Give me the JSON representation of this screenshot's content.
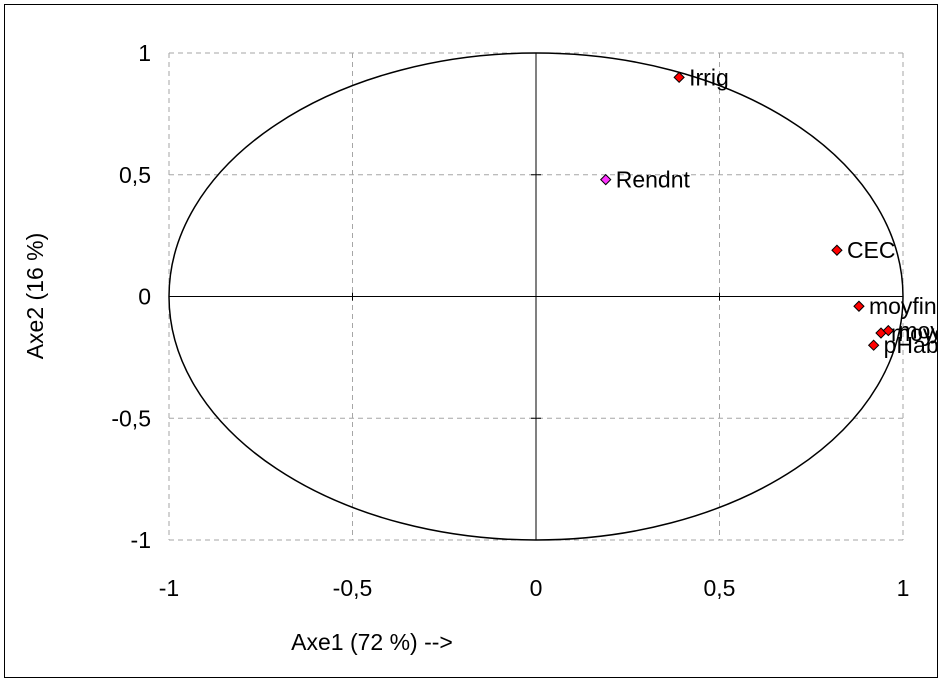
{
  "chart_data": {
    "type": "scatter",
    "xlabel": "Axe1 (72 %) -->",
    "ylabel": "Axe2 (16 %)",
    "xlim": [
      -1,
      1
    ],
    "ylim": [
      -1,
      1
    ],
    "x_ticks": [
      -1,
      -0.5,
      0,
      0.5,
      1
    ],
    "x_tick_labels": [
      "-1",
      "-0,5",
      "0",
      "0,5",
      "1"
    ],
    "y_ticks": [
      1,
      0.5,
      0,
      -0.5,
      -1
    ],
    "y_tick_labels": [
      "1",
      "0,5",
      "0",
      "-0,5",
      "-1"
    ],
    "grid": true,
    "correlation_circle": true,
    "points": [
      {
        "label": "Irrig",
        "x": 0.39,
        "y": 0.9,
        "color": "#ff0000"
      },
      {
        "label": "Rendnt",
        "x": 0.19,
        "y": 0.48,
        "color": "#ff33ff"
      },
      {
        "label": "CEC",
        "x": 0.82,
        "y": 0.19,
        "color": "#ff0000"
      },
      {
        "label": "moyfin",
        "x": 0.88,
        "y": -0.04,
        "color": "#ff0000"
      },
      {
        "label": "moyeb",
        "x": 0.94,
        "y": -0.15,
        "color": "#ff0000"
      },
      {
        "label": "moyeb",
        "x": 0.96,
        "y": -0.14,
        "color": "#ff0000"
      },
      {
        "label": "pHabo",
        "x": 0.92,
        "y": -0.2,
        "color": "#ff0000"
      }
    ]
  }
}
